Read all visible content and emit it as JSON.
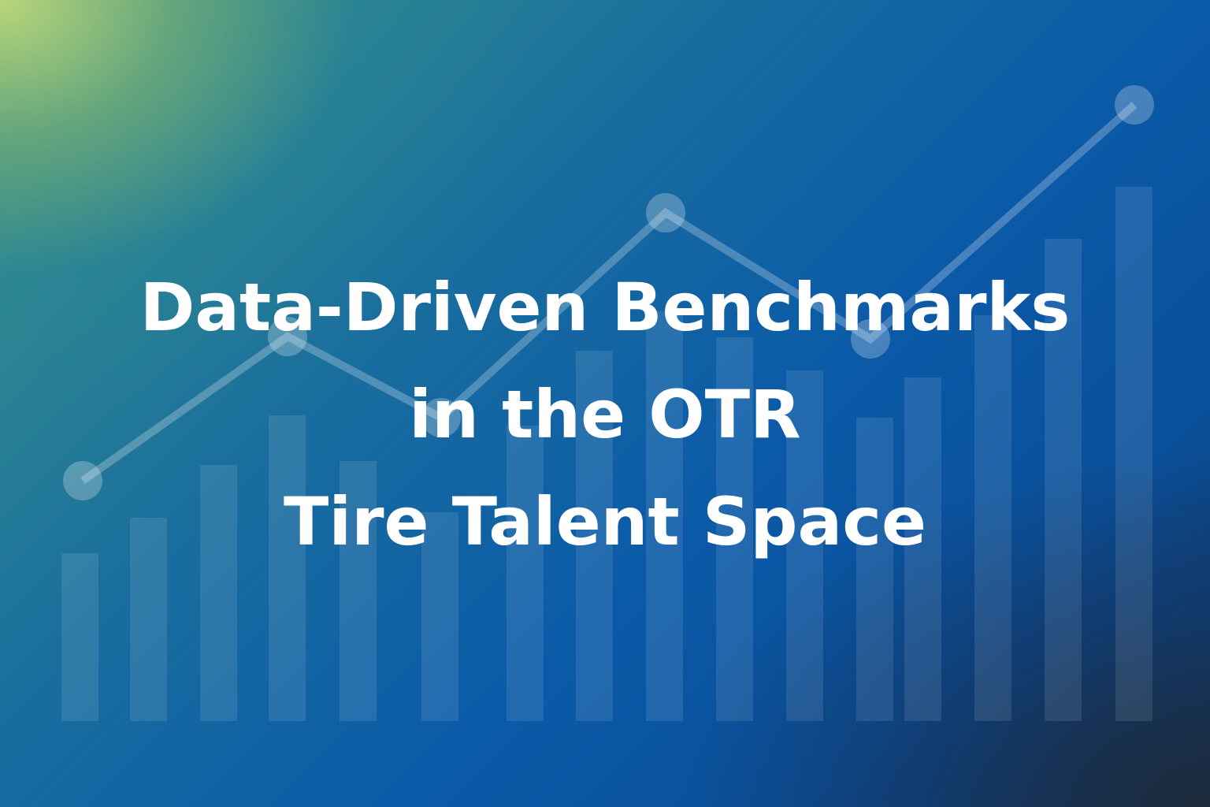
{
  "title": {
    "line1": "Data-Driven Benchmarks",
    "line2": "in the OTR",
    "line3": "Tire Talent Space"
  },
  "colors": {
    "text": "#ffffff",
    "gradient_start": "#b8d67a",
    "gradient_mid": "#0b5aa8",
    "gradient_end": "#1c2a3a"
  }
}
